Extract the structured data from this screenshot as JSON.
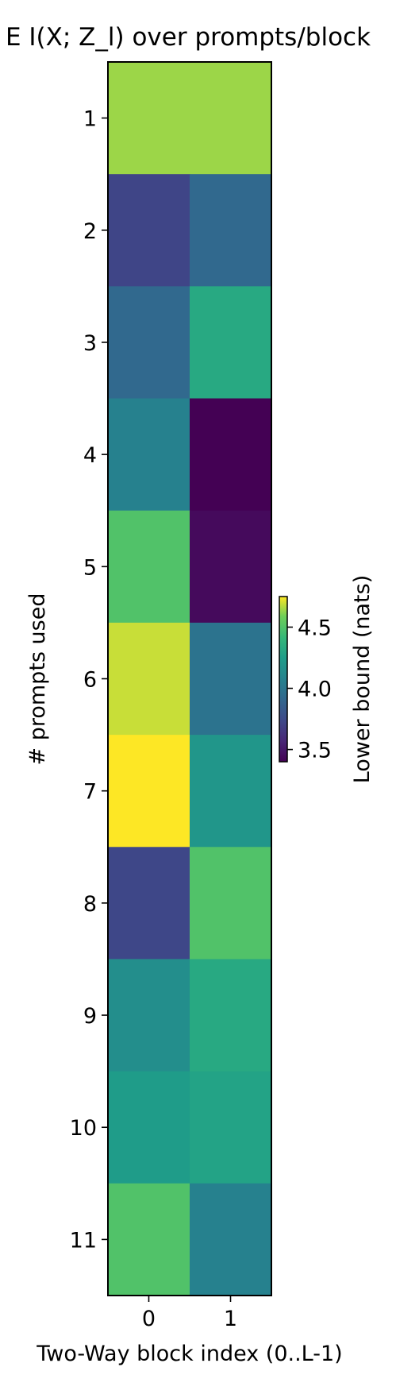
{
  "chart_data": {
    "type": "heatmap",
    "title": "E  I(X; Z_l) over prompts/block",
    "xlabel": "Two-Way block index (0..L-1)",
    "ylabel": "# prompts used",
    "x_categories": [
      "0",
      "1"
    ],
    "y_categories": [
      "1",
      "2",
      "3",
      "4",
      "5",
      "6",
      "7",
      "8",
      "9",
      "10",
      "11"
    ],
    "values": [
      [
        4.64,
        4.64
      ],
      [
        3.72,
        3.92
      ],
      [
        3.92,
        4.32
      ],
      [
        4.07,
        3.4
      ],
      [
        4.5,
        3.44
      ],
      [
        4.69,
        3.98
      ],
      [
        4.75,
        4.2
      ],
      [
        3.73,
        4.5
      ],
      [
        4.15,
        4.32
      ],
      [
        4.24,
        4.28
      ],
      [
        4.5,
        4.07
      ]
    ],
    "colorbar": {
      "label": "Lower bound (nats)",
      "ticks": [
        3.5,
        4.0,
        4.5
      ],
      "tick_labels": [
        "3.5",
        "4.0",
        "4.5"
      ],
      "range": [
        3.4,
        4.75
      ],
      "colormap": "viridis"
    }
  }
}
